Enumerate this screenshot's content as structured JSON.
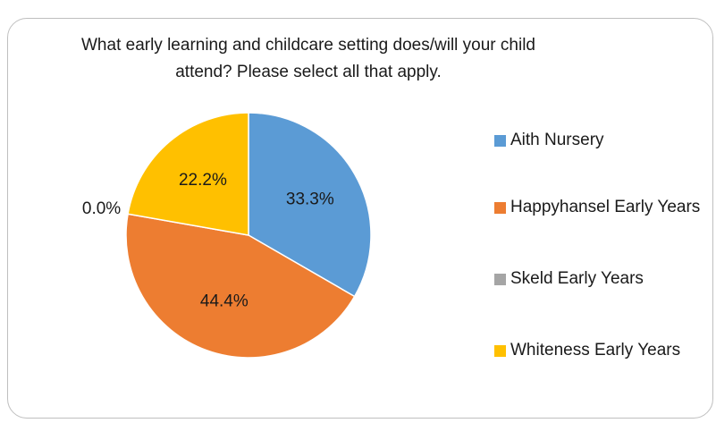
{
  "chart_data": {
    "type": "pie",
    "title": "What early learning and childcare setting does/will your child attend? Please select all that apply.",
    "categories": [
      "Aith Nursery",
      "Happyhansel Early Years",
      "Skeld Early Years",
      "Whiteness Early Years"
    ],
    "values": [
      33.3,
      44.4,
      0.0,
      22.2
    ],
    "value_labels": [
      "33.3%",
      "44.4%",
      "0.0%",
      "22.2%"
    ],
    "colors": [
      "#5b9bd5",
      "#ed7d31",
      "#a5a5a5",
      "#ffc000"
    ],
    "legend": "right"
  }
}
